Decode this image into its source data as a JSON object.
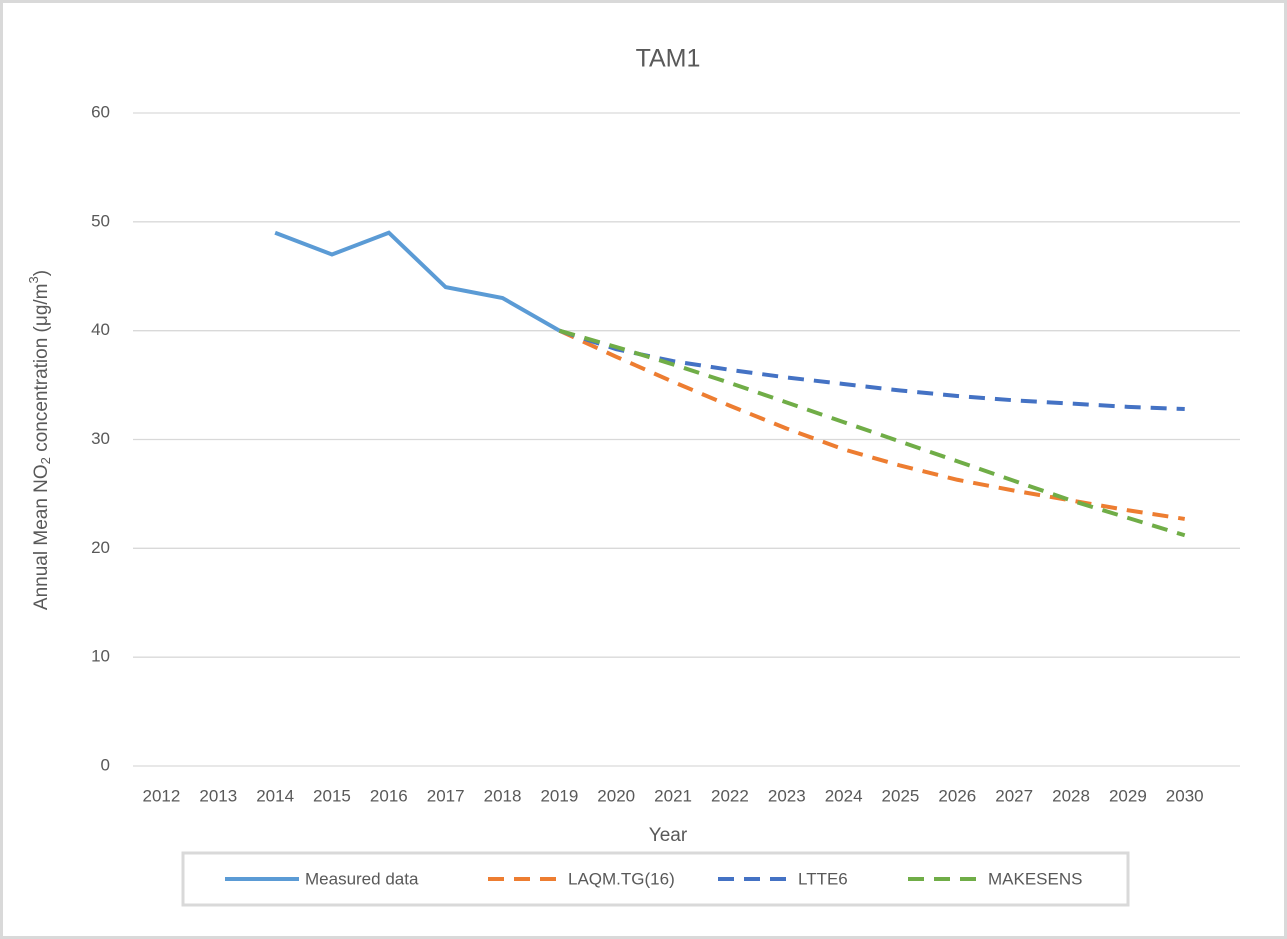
{
  "chart_data": {
    "type": "line",
    "title": "TAM1",
    "x_label": "Year",
    "y_label": [
      "Annual Mean NO",
      "2",
      " concentration (μg/m",
      "3",
      ")"
    ],
    "categories": [
      "2012",
      "2013",
      "2014",
      "2015",
      "2016",
      "2017",
      "2018",
      "2019",
      "2020",
      "2021",
      "2022",
      "2023",
      "2024",
      "2025",
      "2026",
      "2027",
      "2028",
      "2029",
      "2030"
    ],
    "series": [
      {
        "name": "Measured data",
        "color": "#5b9bd5",
        "dashed": false,
        "values": [
          null,
          null,
          49,
          47,
          49,
          44,
          43,
          40,
          null,
          null,
          null,
          null,
          null,
          null,
          null,
          null,
          null,
          null,
          null
        ]
      },
      {
        "name": "LAQM.TG(16)",
        "color": "#ed7d31",
        "dashed": true,
        "values": [
          null,
          null,
          null,
          null,
          null,
          null,
          null,
          40,
          37.6,
          35.3,
          33.1,
          31.0,
          29.1,
          27.6,
          26.3,
          25.3,
          24.4,
          23.5,
          22.7
        ]
      },
      {
        "name": "LTTE6",
        "color": "#4472c4",
        "dashed": true,
        "values": [
          null,
          null,
          null,
          null,
          null,
          null,
          null,
          40,
          38.3,
          37.2,
          36.4,
          35.7,
          35.1,
          34.5,
          34.0,
          33.6,
          33.3,
          33.0,
          32.8
        ]
      },
      {
        "name": "MAKESENS",
        "color": "#70ad47",
        "dashed": true,
        "values": [
          null,
          null,
          null,
          null,
          null,
          null,
          null,
          40,
          38.5,
          36.9,
          35.2,
          33.4,
          31.6,
          29.8,
          28.0,
          26.2,
          24.4,
          22.8,
          21.2
        ]
      }
    ],
    "ylim": [
      0,
      60
    ],
    "yticks": [
      0,
      10,
      20,
      30,
      40,
      50,
      60
    ],
    "grid": true,
    "legend": "bottom"
  }
}
